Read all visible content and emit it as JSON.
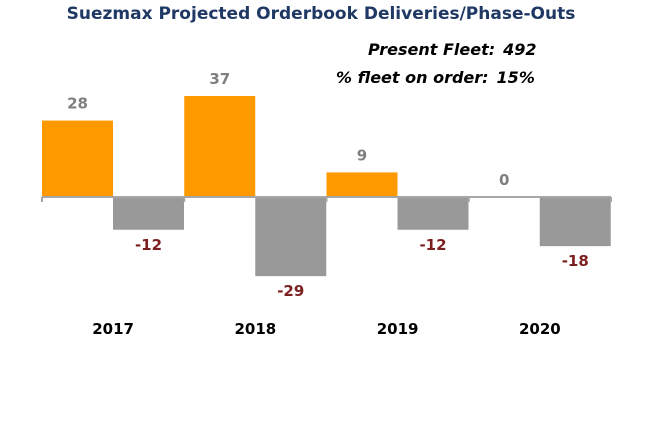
{
  "chart_data": {
    "type": "bar",
    "title": "Suezmax Projected Orderbook Deliveries/Phase-Outs",
    "categories": [
      "2017",
      "2018",
      "2019",
      "2020"
    ],
    "series": [
      {
        "values": [
          28,
          37,
          9,
          0
        ],
        "color": "#ff9900"
      },
      {
        "values": [
          -12,
          -29,
          -12,
          -18
        ],
        "color": "#999999"
      }
    ],
    "label_colors": {
      "deliveries": "#7f7f7f",
      "phase_outs": "#7b1f1f"
    },
    "ylim": [
      -37,
      43
    ],
    "grid": false,
    "legend": "none"
  },
  "stats": {
    "present_fleet_label": "Present Fleet:",
    "present_fleet_value": "492",
    "on_order_label": "% fleet on order:",
    "on_order_value": "15%"
  }
}
